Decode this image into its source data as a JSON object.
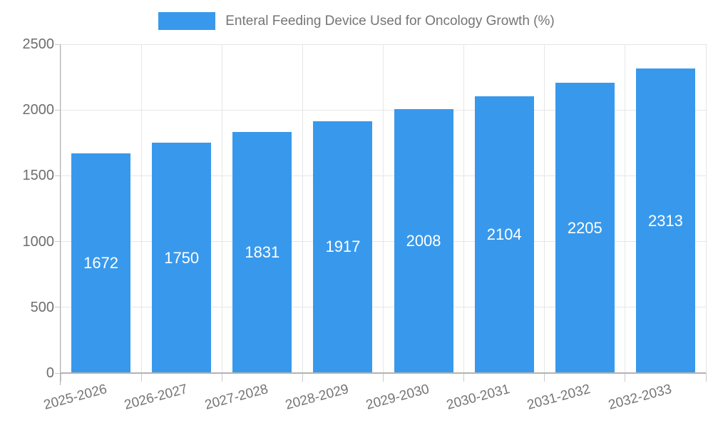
{
  "legend": {
    "label": "Enteral Feeding Device Used for Oncology Growth (%)"
  },
  "chart_data": {
    "type": "bar",
    "title": "Enteral Feeding Device Used for Oncology Growth (%)",
    "categories": [
      "2025-2026",
      "2026-2027",
      "2027-2028",
      "2028-2029",
      "2029-2030",
      "2030-2031",
      "2031-2032",
      "2032-2033"
    ],
    "values": [
      1672,
      1750,
      1831,
      1917,
      2008,
      2104,
      2205,
      2313
    ],
    "xlabel": "",
    "ylabel": "",
    "ylim": [
      0,
      2500
    ],
    "yticks": [
      0,
      500,
      1000,
      1500,
      2000,
      2500
    ],
    "grid": true,
    "legend_position": "top",
    "x_tick_rotation_deg": -15,
    "value_labels_position": "inside-center"
  },
  "colors": {
    "bar": "#3899EC",
    "gridline": "#E6E6E6",
    "axis": "#B3B3B3",
    "tick": "#C9C9C9",
    "axis_text": "#757575",
    "value_text": "#FFFFFF",
    "background": "#FFFFFF"
  }
}
